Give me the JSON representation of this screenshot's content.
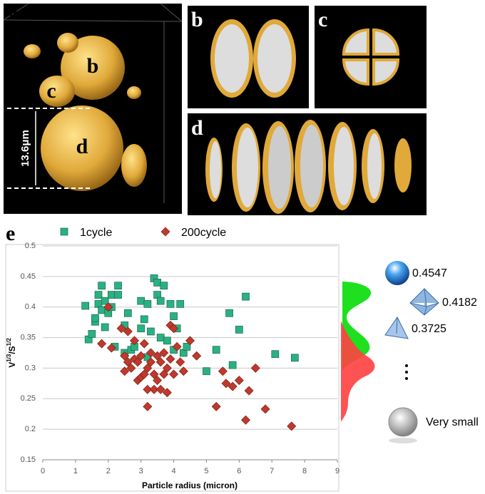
{
  "panels": {
    "a": {
      "label": "a",
      "particles": [
        "b",
        "c",
        "d"
      ],
      "scale_bar": "13.6μm"
    },
    "b": {
      "label": "b"
    },
    "c": {
      "label": "c"
    },
    "d": {
      "label": "d"
    },
    "e": {
      "label": "e"
    }
  },
  "chart_data": {
    "type": "scatter",
    "xlabel": "Particle radius (micron)",
    "ylabel": {
      "base1": "V",
      "sup1": "1/3",
      "base2": "/S",
      "sup2": "1/2"
    },
    "xlim": [
      0,
      9
    ],
    "xticks": [
      0,
      1,
      2,
      3,
      4,
      5,
      6,
      7,
      8,
      9
    ],
    "ylim": [
      0.15,
      0.5
    ],
    "yticks": [
      0.15,
      0.2,
      0.25,
      0.3,
      0.35,
      0.4,
      0.45,
      0.5
    ],
    "grid": true,
    "series": [
      {
        "name": "1cycle",
        "color": "#2bb083",
        "marker": "square",
        "x": [
          1.3,
          1.4,
          1.5,
          1.6,
          1.6,
          1.7,
          1.7,
          1.8,
          1.8,
          1.9,
          1.9,
          2.0,
          2.1,
          2.1,
          2.2,
          2.3,
          2.3,
          2.5,
          2.5,
          2.6,
          2.7,
          2.8,
          3.0,
          3.0,
          3.1,
          3.2,
          3.2,
          3.3,
          3.4,
          3.5,
          3.5,
          3.6,
          3.6,
          3.7,
          3.8,
          3.9,
          4.0,
          4.0,
          4.1,
          4.2,
          4.3,
          4.4,
          5.0,
          5.3,
          5.7,
          5.8,
          6.0,
          6.2,
          7.1,
          7.7
        ],
        "values": [
          0.402,
          0.347,
          0.356,
          0.376,
          0.382,
          0.405,
          0.42,
          0.395,
          0.435,
          0.41,
          0.367,
          0.39,
          0.4,
          0.42,
          0.335,
          0.435,
          0.42,
          0.37,
          0.325,
          0.39,
          0.33,
          0.335,
          0.365,
          0.41,
          0.38,
          0.405,
          0.318,
          0.36,
          0.447,
          0.44,
          0.42,
          0.41,
          0.35,
          0.435,
          0.345,
          0.405,
          0.33,
          0.385,
          0.365,
          0.405,
          0.325,
          0.335,
          0.295,
          0.33,
          0.39,
          0.305,
          0.363,
          0.417,
          0.323,
          0.317
        ]
      },
      {
        "name": "200cycle",
        "color": "#c0392b",
        "marker": "diamond",
        "x": [
          1.8,
          2.0,
          2.1,
          2.4,
          2.5,
          2.5,
          2.6,
          2.6,
          2.7,
          2.8,
          2.8,
          2.9,
          2.9,
          3.0,
          3.0,
          3.1,
          3.1,
          3.2,
          3.2,
          3.2,
          3.3,
          3.3,
          3.4,
          3.4,
          3.5,
          3.5,
          3.6,
          3.6,
          3.7,
          3.7,
          3.8,
          3.8,
          3.9,
          3.9,
          4.0,
          4.0,
          4.1,
          4.2,
          4.3,
          4.5,
          4.7,
          5.3,
          5.5,
          5.6,
          5.8,
          6.0,
          6.2,
          6.3,
          6.5,
          6.8,
          7.6
        ],
        "values": [
          0.34,
          0.4,
          0.333,
          0.365,
          0.295,
          0.32,
          0.36,
          0.31,
          0.3,
          0.345,
          0.315,
          0.28,
          0.31,
          0.285,
          0.32,
          0.29,
          0.34,
          0.237,
          0.265,
          0.3,
          0.325,
          0.31,
          0.29,
          0.265,
          0.28,
          0.32,
          0.265,
          0.31,
          0.29,
          0.325,
          0.26,
          0.3,
          0.37,
          0.315,
          0.365,
          0.29,
          0.335,
          0.31,
          0.295,
          0.345,
          0.32,
          0.237,
          0.295,
          0.275,
          0.27,
          0.28,
          0.215,
          0.263,
          0.3,
          0.233,
          0.205
        ]
      }
    ]
  },
  "shape_legend": [
    {
      "value": 0.4547
    },
    {
      "value": 0.4182
    },
    {
      "value": 0.3725
    },
    {
      "label": "Very small"
    }
  ]
}
